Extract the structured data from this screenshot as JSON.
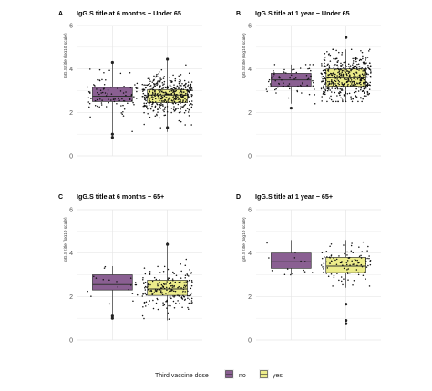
{
  "chart_data": [
    {
      "panel": "A",
      "type": "box",
      "title": "IgG.S title at 6 months − Under 65",
      "ylabel": "IgG.S title (log10 scale)",
      "xlabel": "",
      "ylim": [
        0,
        6
      ],
      "yticks": [
        0,
        2,
        4,
        6
      ],
      "grid": true,
      "categories": [
        "no",
        "yes"
      ],
      "boxes": [
        {
          "group": "no",
          "min": 0.9,
          "q1": 2.5,
          "median": 2.75,
          "q3": 3.15,
          "max": 4.35,
          "n": 95
        },
        {
          "group": "yes",
          "min": 1.1,
          "q1": 2.45,
          "median": 2.8,
          "q3": 3.05,
          "max": 4.5,
          "n": 420
        }
      ],
      "outliers": [
        {
          "group": "no",
          "y": 4.3
        },
        {
          "group": "no",
          "y": 1.0
        },
        {
          "group": "no",
          "y": 0.85
        },
        {
          "group": "yes",
          "y": 4.45
        },
        {
          "group": "yes",
          "y": 1.3
        }
      ]
    },
    {
      "panel": "B",
      "type": "box",
      "title": "IgG.S title at 1 year − Under 65",
      "ylabel": "IgG.S title (log10 scale)",
      "xlabel": "",
      "ylim": [
        0,
        6
      ],
      "yticks": [
        0,
        2,
        4,
        6
      ],
      "grid": true,
      "categories": [
        "no",
        "yes"
      ],
      "boxes": [
        {
          "group": "no",
          "min": 2.4,
          "q1": 3.2,
          "median": 3.5,
          "q3": 3.8,
          "max": 4.2,
          "n": 75
        },
        {
          "group": "yes",
          "min": 2.5,
          "q1": 3.2,
          "median": 3.6,
          "q3": 4.0,
          "max": 4.9,
          "n": 480
        }
      ],
      "outliers": [
        {
          "group": "no",
          "y": 2.2
        },
        {
          "group": "yes",
          "y": 5.45
        }
      ]
    },
    {
      "panel": "C",
      "type": "box",
      "title": "IgG.S title at 6 months − 65+",
      "ylabel": "IgG.S title (log10 scale)",
      "xlabel": "",
      "ylim": [
        0,
        6
      ],
      "yticks": [
        0,
        2,
        4,
        6
      ],
      "grid": true,
      "categories": [
        "no",
        "yes"
      ],
      "boxes": [
        {
          "group": "no",
          "min": 1.1,
          "q1": 2.3,
          "median": 2.55,
          "q3": 3.0,
          "max": 3.4,
          "n": 20
        },
        {
          "group": "yes",
          "min": 0.9,
          "q1": 2.05,
          "median": 2.35,
          "q3": 2.75,
          "max": 4.5,
          "n": 200
        }
      ],
      "outliers": [
        {
          "group": "no",
          "y": 1.1
        },
        {
          "group": "no",
          "y": 1.0
        },
        {
          "group": "yes",
          "y": 4.4
        }
      ]
    },
    {
      "panel": "D",
      "type": "box",
      "title": "IgG.S title at 1 year − 65+",
      "ylabel": "IgG.S title (log10 scale)",
      "xlabel": "",
      "ylim": [
        0,
        6
      ],
      "yticks": [
        0,
        2,
        4,
        6
      ],
      "grid": true,
      "categories": [
        "no",
        "yes"
      ],
      "boxes": [
        {
          "group": "no",
          "min": 3.0,
          "q1": 3.3,
          "median": 3.6,
          "q3": 4.0,
          "max": 4.6,
          "n": 14
        },
        {
          "group": "yes",
          "min": 2.4,
          "q1": 3.1,
          "median": 3.4,
          "q3": 3.8,
          "max": 4.6,
          "n": 110
        }
      ],
      "outliers": [
        {
          "group": "yes",
          "y": 1.65
        },
        {
          "group": "yes",
          "y": 0.9
        },
        {
          "group": "yes",
          "y": 0.75
        }
      ]
    }
  ],
  "legend": {
    "title": "Third vaccine dose",
    "position": "bottom",
    "items": [
      {
        "label": "no",
        "color": "#8a5f92"
      },
      {
        "label": "yes",
        "color": "#ecec8a"
      }
    ]
  },
  "colors": {
    "no": "#8a5f92",
    "yes": "#ecec8a",
    "point": "#111111",
    "grid": "#e6e6e6"
  }
}
